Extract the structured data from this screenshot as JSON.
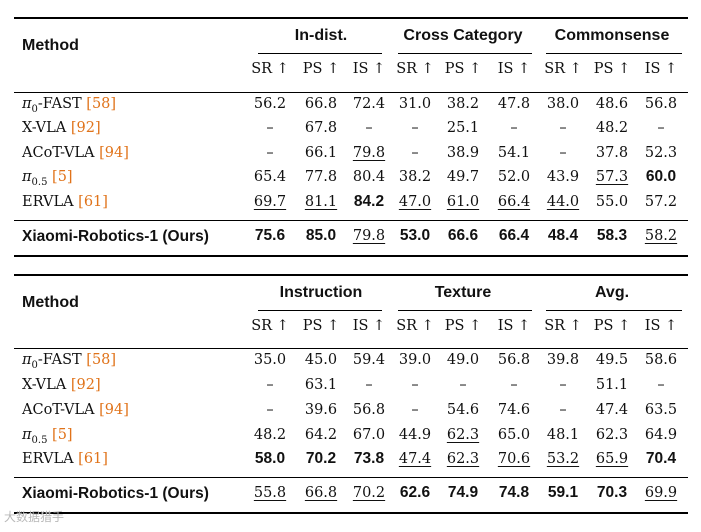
{
  "arrow": "↑",
  "metrics": [
    "SR",
    "PS",
    "IS"
  ],
  "tables": [
    {
      "method_header": "Method",
      "groups": [
        "In-dist.",
        "Cross Category",
        "Commonsense"
      ],
      "rows": [
        {
          "name": "π",
          "sub": "0",
          "rest": "-FAST ",
          "ref": "[58]",
          "bold": false,
          "values": [
            {
              "v": "56.2"
            },
            {
              "v": "66.8"
            },
            {
              "v": "72.4"
            },
            {
              "v": "31.0"
            },
            {
              "v": "38.2"
            },
            {
              "v": "47.8"
            },
            {
              "v": "38.0"
            },
            {
              "v": "48.6"
            },
            {
              "v": "56.8"
            }
          ]
        },
        {
          "name": "X-VLA ",
          "sub": "",
          "rest": "",
          "ref": "[92]",
          "bold": false,
          "values": [
            {
              "v": "–"
            },
            {
              "v": "67.8"
            },
            {
              "v": "–"
            },
            {
              "v": "–"
            },
            {
              "v": "25.1"
            },
            {
              "v": "–"
            },
            {
              "v": "–"
            },
            {
              "v": "48.2"
            },
            {
              "v": "–"
            }
          ]
        },
        {
          "name": "ACoT-VLA ",
          "sub": "",
          "rest": "",
          "ref": "[94]",
          "bold": false,
          "values": [
            {
              "v": "–"
            },
            {
              "v": "66.1"
            },
            {
              "v": "79.8",
              "s": "u"
            },
            {
              "v": "–"
            },
            {
              "v": "38.9"
            },
            {
              "v": "54.1"
            },
            {
              "v": "–"
            },
            {
              "v": "37.8"
            },
            {
              "v": "52.3"
            }
          ]
        },
        {
          "name": "π",
          "sub": "0.5",
          "rest": " ",
          "ref": "[5]",
          "bold": false,
          "values": [
            {
              "v": "65.4"
            },
            {
              "v": "77.8"
            },
            {
              "v": "80.4"
            },
            {
              "v": "38.2"
            },
            {
              "v": "49.7"
            },
            {
              "v": "52.0"
            },
            {
              "v": "43.9"
            },
            {
              "v": "57.3",
              "s": "u"
            },
            {
              "v": "60.0",
              "s": "b"
            }
          ]
        },
        {
          "name": "ERVLA ",
          "sub": "",
          "rest": "",
          "ref": "[61]",
          "bold": false,
          "values": [
            {
              "v": "69.7",
              "s": "u"
            },
            {
              "v": "81.1",
              "s": "u"
            },
            {
              "v": "84.2",
              "s": "b"
            },
            {
              "v": "47.0",
              "s": "u"
            },
            {
              "v": "61.0",
              "s": "u"
            },
            {
              "v": "66.4",
              "s": "u"
            },
            {
              "v": "44.0",
              "s": "u"
            },
            {
              "v": "55.0"
            },
            {
              "v": "57.2"
            }
          ]
        },
        {
          "name": "Xiaomi-Robotics-1 (Ours)",
          "sub": "",
          "rest": "",
          "ref": "",
          "bold": true,
          "values": [
            {
              "v": "75.6",
              "s": "b"
            },
            {
              "v": "85.0",
              "s": "b"
            },
            {
              "v": "79.8",
              "s": "u"
            },
            {
              "v": "53.0",
              "s": "b"
            },
            {
              "v": "66.6",
              "s": "b"
            },
            {
              "v": "66.4",
              "s": "b"
            },
            {
              "v": "48.4",
              "s": "b"
            },
            {
              "v": "58.3",
              "s": "b"
            },
            {
              "v": "58.2",
              "s": "u"
            }
          ]
        }
      ]
    },
    {
      "method_header": "Method",
      "groups": [
        "Instruction",
        "Texture",
        "Avg."
      ],
      "rows": [
        {
          "name": "π",
          "sub": "0",
          "rest": "-FAST ",
          "ref": "[58]",
          "bold": false,
          "values": [
            {
              "v": "35.0"
            },
            {
              "v": "45.0"
            },
            {
              "v": "59.4"
            },
            {
              "v": "39.0"
            },
            {
              "v": "49.0"
            },
            {
              "v": "56.8"
            },
            {
              "v": "39.8"
            },
            {
              "v": "49.5"
            },
            {
              "v": "58.6"
            }
          ]
        },
        {
          "name": "X-VLA ",
          "sub": "",
          "rest": "",
          "ref": "[92]",
          "bold": false,
          "values": [
            {
              "v": "–"
            },
            {
              "v": "63.1"
            },
            {
              "v": "–"
            },
            {
              "v": "–"
            },
            {
              "v": "–"
            },
            {
              "v": "–"
            },
            {
              "v": "–"
            },
            {
              "v": "51.1"
            },
            {
              "v": "–"
            }
          ]
        },
        {
          "name": "ACoT-VLA ",
          "sub": "",
          "rest": "",
          "ref": "[94]",
          "bold": false,
          "values": [
            {
              "v": "–"
            },
            {
              "v": "39.6"
            },
            {
              "v": "56.8"
            },
            {
              "v": "–"
            },
            {
              "v": "54.6"
            },
            {
              "v": "74.6"
            },
            {
              "v": "–"
            },
            {
              "v": "47.4"
            },
            {
              "v": "63.5"
            }
          ]
        },
        {
          "name": "π",
          "sub": "0.5",
          "rest": " ",
          "ref": "[5]",
          "bold": false,
          "values": [
            {
              "v": "48.2"
            },
            {
              "v": "64.2"
            },
            {
              "v": "67.0"
            },
            {
              "v": "44.9"
            },
            {
              "v": "62.3",
              "s": "u"
            },
            {
              "v": "65.0"
            },
            {
              "v": "48.1"
            },
            {
              "v": "62.3"
            },
            {
              "v": "64.9"
            }
          ]
        },
        {
          "name": "ERVLA ",
          "sub": "",
          "rest": "",
          "ref": "[61]",
          "bold": false,
          "values": [
            {
              "v": "58.0",
              "s": "b"
            },
            {
              "v": "70.2",
              "s": "b"
            },
            {
              "v": "73.8",
              "s": "b"
            },
            {
              "v": "47.4",
              "s": "u"
            },
            {
              "v": "62.3",
              "s": "u"
            },
            {
              "v": "70.6",
              "s": "u"
            },
            {
              "v": "53.2",
              "s": "u"
            },
            {
              "v": "65.9",
              "s": "u"
            },
            {
              "v": "70.4",
              "s": "b"
            }
          ]
        },
        {
          "name": "Xiaomi-Robotics-1 (Ours)",
          "sub": "",
          "rest": "",
          "ref": "",
          "bold": true,
          "values": [
            {
              "v": "55.8",
              "s": "u"
            },
            {
              "v": "66.8",
              "s": "u"
            },
            {
              "v": "70.2",
              "s": "u"
            },
            {
              "v": "62.6",
              "s": "b"
            },
            {
              "v": "74.9",
              "s": "b"
            },
            {
              "v": "74.8",
              "s": "b"
            },
            {
              "v": "59.1",
              "s": "b"
            },
            {
              "v": "70.3",
              "s": "b"
            },
            {
              "v": "69.9",
              "s": "u"
            }
          ]
        }
      ]
    }
  ],
  "watermark": "大数据猎手"
}
